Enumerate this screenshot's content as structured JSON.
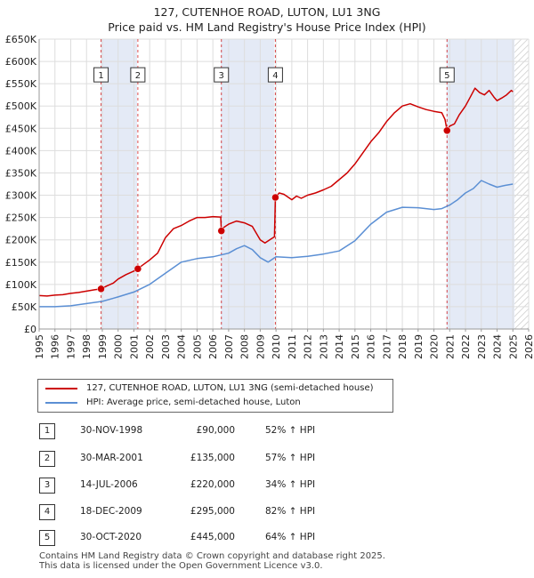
{
  "title_line1": "127, CUTENHOE ROAD, LUTON, LU1 3NG",
  "title_line2": "Price paid vs. HM Land Registry's House Price Index (HPI)",
  "legend": {
    "property": "127, CUTENHOE ROAD, LUTON, LU1 3NG (semi-detached house)",
    "hpi": "HPI: Average price, semi-detached house, Luton"
  },
  "sales": [
    {
      "num": "1",
      "date": "30-NOV-1998",
      "price": "£90,000",
      "hpi": "52% ↑ HPI"
    },
    {
      "num": "2",
      "date": "30-MAR-2001",
      "price": "£135,000",
      "hpi": "57% ↑ HPI"
    },
    {
      "num": "3",
      "date": "14-JUL-2006",
      "price": "£220,000",
      "hpi": "34% ↑ HPI"
    },
    {
      "num": "4",
      "date": "18-DEC-2009",
      "price": "£295,000",
      "hpi": "82% ↑ HPI"
    },
    {
      "num": "5",
      "date": "30-OCT-2020",
      "price": "£445,000",
      "hpi": "64% ↑ HPI"
    }
  ],
  "footer_line1": "Contains HM Land Registry data © Crown copyright and database right 2025.",
  "footer_line2": "This data is licensed under the Open Government Licence v3.0.",
  "colors": {
    "property": "#cc0000",
    "hpi": "#5b8fd4",
    "band": "#e4eaf6",
    "grid": "#dddddd",
    "future": "#cccccc"
  },
  "chart_data": {
    "type": "line",
    "title": "127, CUTENHOE ROAD, LUTON, LU1 3NG — Price paid vs. HM Land Registry's House Price Index (HPI)",
    "xlabel": "",
    "ylabel": "",
    "xlim": [
      1995,
      2026
    ],
    "ylim": [
      0,
      650000
    ],
    "x_ticks": [
      1995,
      1996,
      1997,
      1998,
      1999,
      2000,
      2001,
      2002,
      2003,
      2004,
      2005,
      2006,
      2007,
      2008,
      2009,
      2010,
      2011,
      2012,
      2013,
      2014,
      2015,
      2016,
      2017,
      2018,
      2019,
      2020,
      2021,
      2022,
      2023,
      2024,
      2025,
      2026
    ],
    "y_ticks": [
      {
        "value": 0,
        "label": "£0"
      },
      {
        "value": 50000,
        "label": "£50K"
      },
      {
        "value": 100000,
        "label": "£100K"
      },
      {
        "value": 150000,
        "label": "£150K"
      },
      {
        "value": 200000,
        "label": "£200K"
      },
      {
        "value": 250000,
        "label": "£250K"
      },
      {
        "value": 300000,
        "label": "£300K"
      },
      {
        "value": 350000,
        "label": "£350K"
      },
      {
        "value": 400000,
        "label": "£400K"
      },
      {
        "value": 450000,
        "label": "£450K"
      },
      {
        "value": 500000,
        "label": "£500K"
      },
      {
        "value": 550000,
        "label": "£550K"
      },
      {
        "value": 600000,
        "label": "£600K"
      },
      {
        "value": 650000,
        "label": "£650K"
      }
    ],
    "future_from": 2025.1,
    "bands": [
      [
        1998.9,
        2001.2
      ],
      [
        2006.5,
        2009.9
      ],
      [
        2020.8,
        2025.1
      ]
    ],
    "sales": [
      {
        "label": "1",
        "x": 1998.92,
        "y": 90000
      },
      {
        "label": "2",
        "x": 2001.25,
        "y": 135000
      },
      {
        "label": "3",
        "x": 2006.54,
        "y": 220000
      },
      {
        "label": "4",
        "x": 2009.96,
        "y": 295000
      },
      {
        "label": "5",
        "x": 2020.83,
        "y": 445000
      }
    ],
    "marker_box_value": 570000,
    "series": [
      {
        "name": "127, CUTENHOE ROAD, LUTON, LU1 3NG (semi-detached house)",
        "x": [
          1995.0,
          1995.5,
          1996.0,
          1996.5,
          1997.0,
          1997.5,
          1998.0,
          1998.5,
          1998.92,
          1999.3,
          1999.7,
          2000.0,
          2000.5,
          2001.0,
          2001.25,
          2001.5,
          2002.0,
          2002.5,
          2003.0,
          2003.5,
          2004.0,
          2004.5,
          2005.0,
          2005.5,
          2006.0,
          2006.5,
          2006.54,
          2006.7,
          2007.0,
          2007.5,
          2008.0,
          2008.5,
          2009.0,
          2009.3,
          2009.6,
          2009.9,
          2009.96,
          2010.2,
          2010.5,
          2011.0,
          2011.3,
          2011.6,
          2012.0,
          2012.5,
          2013.0,
          2013.5,
          2014.0,
          2014.5,
          2015.0,
          2015.5,
          2016.0,
          2016.5,
          2017.0,
          2017.5,
          2018.0,
          2018.5,
          2019.0,
          2019.5,
          2020.0,
          2020.5,
          2020.7,
          2020.83,
          2021.0,
          2021.3,
          2021.6,
          2022.0,
          2022.3,
          2022.6,
          2022.9,
          2023.2,
          2023.5,
          2023.8,
          2024.0,
          2024.3,
          2024.6,
          2024.9,
          2025.0
        ],
        "values": [
          75000,
          74000,
          76000,
          77000,
          80000,
          82000,
          85000,
          88000,
          90000,
          97000,
          103000,
          112000,
          122000,
          130000,
          135000,
          142000,
          155000,
          170000,
          205000,
          225000,
          232000,
          242000,
          250000,
          250000,
          252000,
          251000,
          220000,
          228000,
          235000,
          242000,
          238000,
          230000,
          200000,
          193000,
          200000,
          207000,
          295000,
          305000,
          302000,
          290000,
          298000,
          293000,
          300000,
          305000,
          312000,
          320000,
          335000,
          350000,
          370000,
          395000,
          420000,
          440000,
          465000,
          485000,
          500000,
          505000,
          498000,
          492000,
          488000,
          485000,
          470000,
          445000,
          455000,
          460000,
          480000,
          500000,
          520000,
          540000,
          530000,
          525000,
          535000,
          520000,
          512000,
          518000,
          525000,
          535000,
          532000
        ]
      },
      {
        "name": "HPI: Average price, semi-detached house, Luton",
        "x": [
          1995.0,
          1996.0,
          1997.0,
          1998.0,
          1999.0,
          2000.0,
          2001.0,
          2002.0,
          2003.0,
          2004.0,
          2005.0,
          2006.0,
          2007.0,
          2007.5,
          2008.0,
          2008.5,
          2009.0,
          2009.5,
          2010.0,
          2011.0,
          2012.0,
          2013.0,
          2014.0,
          2015.0,
          2016.0,
          2017.0,
          2018.0,
          2019.0,
          2020.0,
          2020.5,
          2021.0,
          2021.5,
          2022.0,
          2022.5,
          2023.0,
          2023.5,
          2024.0,
          2024.5,
          2025.0
        ],
        "values": [
          50000,
          50000,
          52000,
          57000,
          62000,
          72000,
          83000,
          100000,
          125000,
          150000,
          158000,
          162000,
          170000,
          180000,
          187000,
          178000,
          160000,
          150000,
          162000,
          160000,
          163000,
          168000,
          175000,
          198000,
          235000,
          262000,
          273000,
          272000,
          268000,
          270000,
          278000,
          290000,
          305000,
          315000,
          333000,
          325000,
          318000,
          322000,
          325000
        ]
      }
    ]
  }
}
